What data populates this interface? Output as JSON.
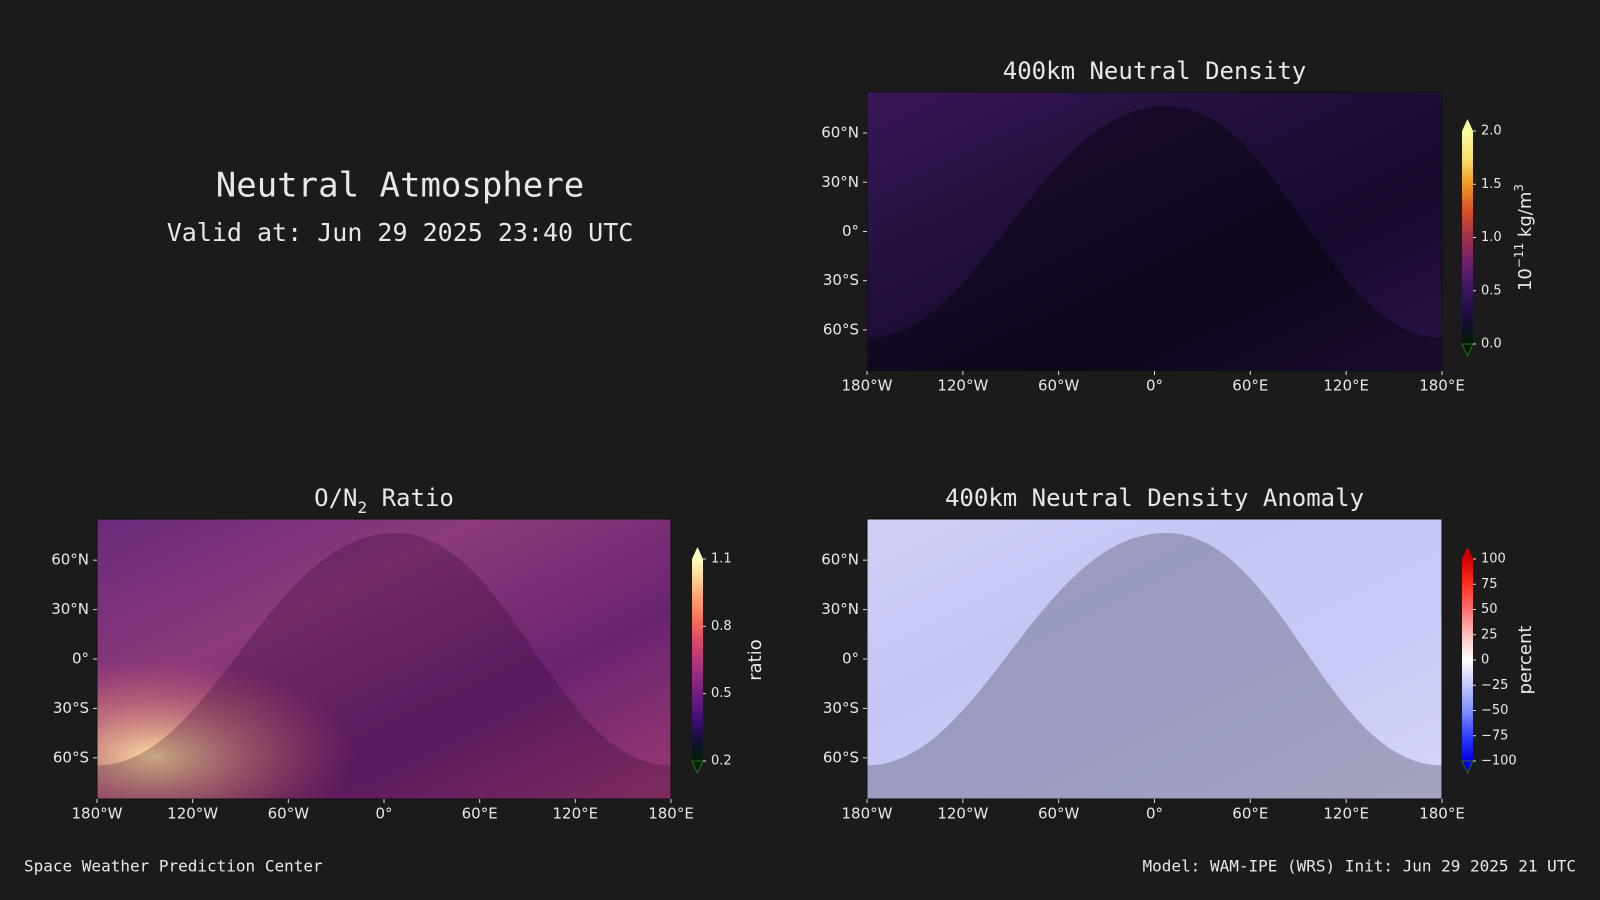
{
  "header": {
    "title": "Neutral Atmosphere",
    "valid": "Valid at: Jun 29 2025 23:40 UTC"
  },
  "footer": {
    "left": "Space Weather Prediction Center",
    "right": "Model: WAM-IPE (WRS) Init: Jun 29 2025 21 UTC"
  },
  "chart_data": [
    {
      "type": "map",
      "title": [
        {
          "text": "400km Neutral Density"
        }
      ],
      "xlim": [
        -180,
        180
      ],
      "ylim": [
        -85,
        85
      ],
      "xticks": [
        {
          "value": -180,
          "label": "180°W"
        },
        {
          "value": -120,
          "label": "120°W"
        },
        {
          "value": -60,
          "label": "60°W"
        },
        {
          "value": 0,
          "label": "0°"
        },
        {
          "value": 60,
          "label": "60°E"
        },
        {
          "value": 120,
          "label": "120°E"
        },
        {
          "value": 180,
          "label": "180°E"
        }
      ],
      "yticks": [
        {
          "value": 60,
          "label": "60°N"
        },
        {
          "value": 30,
          "label": "30°N"
        },
        {
          "value": 0,
          "label": "0°"
        },
        {
          "value": -30,
          "label": "30°S"
        },
        {
          "value": -60,
          "label": "60°S"
        }
      ],
      "colorbar": {
        "lim": [
          0,
          2
        ],
        "ticks": [
          {
            "value": 0,
            "label": "0.0"
          },
          0.5,
          {
            "value": 1,
            "label": "1.0"
          },
          1.5,
          {
            "value": 2,
            "label": "2.0"
          }
        ],
        "label": [
          {
            "text": "10"
          },
          {
            "text": "−11",
            "sup": true
          },
          {
            "text": " kg/m"
          },
          {
            "text": "3",
            "sup": true
          }
        ],
        "colors": [
          "#001a00",
          "#1a0a3a",
          "#3a1560",
          "#6a2070",
          "#a0304a",
          "#d85028",
          "#f09820",
          "#f8e070",
          "#f8ffa0"
        ]
      }
    },
    {
      "type": "map",
      "title": [
        {
          "text": "O/N"
        },
        {
          "text": "2",
          "sub": true
        },
        {
          "text": " Ratio"
        }
      ],
      "xlim": [
        -180,
        180
      ],
      "ylim": [
        -85,
        85
      ],
      "xticks": [
        {
          "value": -180,
          "label": "180°W"
        },
        {
          "value": -120,
          "label": "120°W"
        },
        {
          "value": -60,
          "label": "60°W"
        },
        {
          "value": 0,
          "label": "0°"
        },
        {
          "value": 60,
          "label": "60°E"
        },
        {
          "value": 120,
          "label": "120°E"
        },
        {
          "value": 180,
          "label": "180°E"
        }
      ],
      "yticks": [
        {
          "value": 60,
          "label": "60°N"
        },
        {
          "value": 30,
          "label": "30°N"
        },
        {
          "value": 0,
          "label": "0°"
        },
        {
          "value": -30,
          "label": "30°S"
        },
        {
          "value": -60,
          "label": "60°S"
        }
      ],
      "colorbar": {
        "lim": [
          0.2,
          1.1
        ],
        "ticks": [
          0.2,
          0.5,
          0.8,
          1.1
        ],
        "label": [
          {
            "text": "ratio"
          }
        ],
        "colors": [
          "#002000",
          "#140e36",
          "#3b0f70",
          "#641a80",
          "#8c2981",
          "#b73779",
          "#de4968",
          "#f7705c",
          "#fe9f6d",
          "#fecf92",
          "#fcfdbf"
        ]
      }
    },
    {
      "type": "map",
      "title": [
        {
          "text": "400km Neutral Density Anomaly"
        }
      ],
      "xlim": [
        -180,
        180
      ],
      "ylim": [
        -85,
        85
      ],
      "xticks": [
        {
          "value": -180,
          "label": "180°W"
        },
        {
          "value": -120,
          "label": "120°W"
        },
        {
          "value": -60,
          "label": "60°W"
        },
        {
          "value": 0,
          "label": "0°"
        },
        {
          "value": 60,
          "label": "60°E"
        },
        {
          "value": 120,
          "label": "120°E"
        },
        {
          "value": 180,
          "label": "180°E"
        }
      ],
      "yticks": [
        {
          "value": 60,
          "label": "60°N"
        },
        {
          "value": 30,
          "label": "30°N"
        },
        {
          "value": 0,
          "label": "0°"
        },
        {
          "value": -30,
          "label": "30°S"
        },
        {
          "value": -60,
          "label": "60°S"
        }
      ],
      "colorbar": {
        "lim": [
          -100,
          100
        ],
        "ticks": [
          100,
          75,
          50,
          25,
          0,
          {
            "value": -25,
            "label": "−25"
          },
          {
            "value": -50,
            "label": "−50"
          },
          {
            "value": -75,
            "label": "−75"
          },
          {
            "value": -100,
            "label": "−100"
          }
        ],
        "label": [
          {
            "text": "percent"
          }
        ],
        "colors": [
          "#0000e0",
          "#3040ff",
          "#8090ff",
          "#c0c8ff",
          "#ffffff",
          "#ffc0c0",
          "#ff7070",
          "#ff3020",
          "#d00000"
        ]
      }
    }
  ]
}
